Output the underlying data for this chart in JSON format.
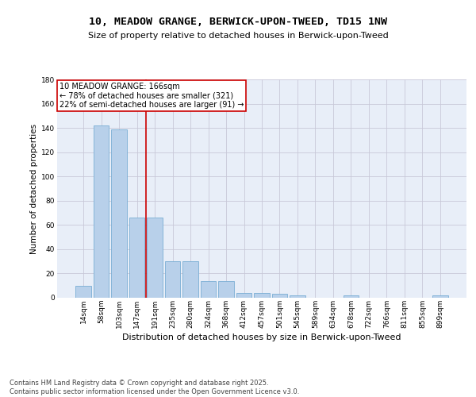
{
  "title": "10, MEADOW GRANGE, BERWICK-UPON-TWEED, TD15 1NW",
  "subtitle": "Size of property relative to detached houses in Berwick-upon-Tweed",
  "xlabel": "Distribution of detached houses by size in Berwick-upon-Tweed",
  "ylabel": "Number of detached properties",
  "categories": [
    "14sqm",
    "58sqm",
    "103sqm",
    "147sqm",
    "191sqm",
    "235sqm",
    "280sqm",
    "324sqm",
    "368sqm",
    "412sqm",
    "457sqm",
    "501sqm",
    "545sqm",
    "589sqm",
    "634sqm",
    "678sqm",
    "722sqm",
    "766sqm",
    "811sqm",
    "855sqm",
    "899sqm"
  ],
  "values": [
    10,
    142,
    139,
    66,
    66,
    30,
    30,
    14,
    14,
    4,
    4,
    3,
    2,
    0,
    0,
    2,
    0,
    0,
    0,
    0,
    2
  ],
  "bar_color": "#b8d0ea",
  "bar_edge_color": "#7aadd4",
  "background_color": "#e8eef8",
  "grid_color": "#c8c8d8",
  "vline_x": 3.5,
  "vline_color": "#cc0000",
  "annotation_text": "10 MEADOW GRANGE: 166sqm\n← 78% of detached houses are smaller (321)\n22% of semi-detached houses are larger (91) →",
  "annotation_box_color": "#cc0000",
  "footer": "Contains HM Land Registry data © Crown copyright and database right 2025.\nContains public sector information licensed under the Open Government Licence v3.0.",
  "ylim": [
    0,
    180
  ],
  "yticks": [
    0,
    20,
    40,
    60,
    80,
    100,
    120,
    140,
    160,
    180
  ],
  "title_fontsize": 9.5,
  "subtitle_fontsize": 8,
  "ylabel_fontsize": 7.5,
  "xlabel_fontsize": 8,
  "tick_fontsize": 6.5,
  "annotation_fontsize": 7,
  "footer_fontsize": 6
}
